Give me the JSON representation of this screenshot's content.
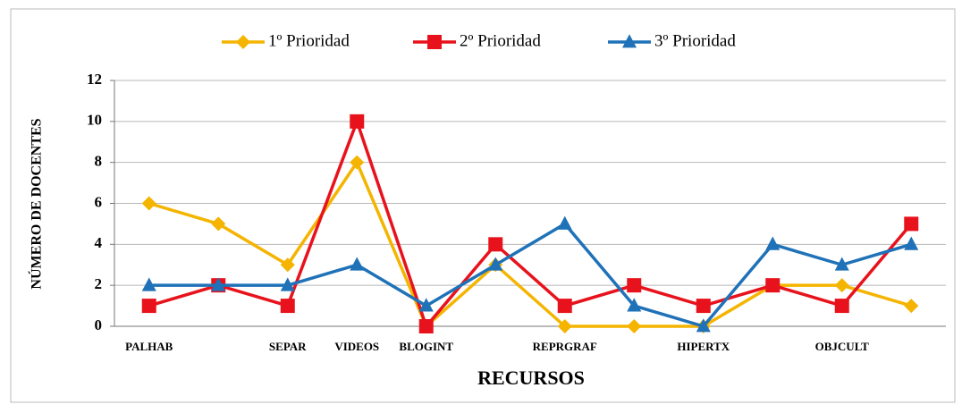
{
  "chart_data": {
    "type": "line",
    "x_label": "RECURSOS",
    "y_label": "NÚMERO DE DOCENTES",
    "categories": [
      "PALHAB",
      null,
      "SEPAR",
      "VIDEOS",
      "BLOGINT",
      null,
      "REPRGRAF",
      null,
      "HIPERTX",
      null,
      "OBJCULT",
      null
    ],
    "series": [
      {
        "name": "1º Prioridad",
        "color": "#f4b400",
        "marker": "diamond",
        "values": [
          6,
          5,
          3,
          8,
          0,
          3,
          0,
          0,
          0,
          2,
          2,
          1
        ]
      },
      {
        "name": "2º Prioridad",
        "color": "#e8121c",
        "marker": "square",
        "values": [
          1,
          2,
          1,
          10,
          0,
          4,
          1,
          2,
          1,
          2,
          1,
          5
        ]
      },
      {
        "name": "3º Prioridad",
        "color": "#1f72b8",
        "marker": "triangle",
        "values": [
          2,
          2,
          2,
          3,
          1,
          3,
          5,
          1,
          0,
          4,
          3,
          4
        ]
      }
    ],
    "ylim": [
      0,
      12
    ],
    "yticks": [
      0,
      2,
      4,
      6,
      8,
      10,
      12
    ],
    "grid": true,
    "legend": "top"
  }
}
